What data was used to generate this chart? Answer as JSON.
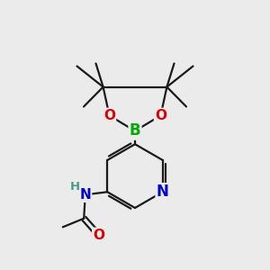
{
  "background_color": "#ebebeb",
  "bond_color": "#1a1a1a",
  "atom_colors": {
    "O": "#dd0000",
    "N": "#0000cc",
    "B": "#00aa00",
    "H": "#4a9a8a",
    "C": "#1a1a1a"
  },
  "figsize": [
    3.0,
    3.0
  ],
  "dpi": 100,
  "lw": 1.6,
  "fontsize": 11
}
